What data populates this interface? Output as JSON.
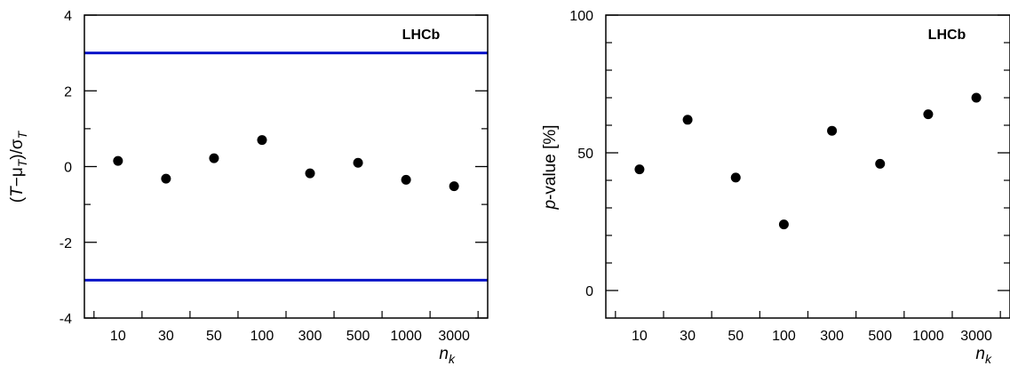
{
  "chart_data": [
    {
      "type": "scatter",
      "x": [
        "10",
        "30",
        "50",
        "100",
        "300",
        "500",
        "1000",
        "3000"
      ],
      "y": [
        0.15,
        -0.32,
        0.22,
        0.7,
        -0.18,
        0.1,
        -0.35,
        -0.52
      ],
      "ylim": [
        -4,
        4
      ],
      "yticks": [
        "-4",
        "-2",
        "0",
        "2",
        "4"
      ],
      "xlabel": "n_k",
      "ylabel": "(T−μ_T)/σ_T",
      "badge": "LHCb",
      "reference_lines": [
        3,
        -3
      ],
      "reference_color": "#0a14c8",
      "marker_color": "#000000",
      "grid": false
    },
    {
      "type": "scatter",
      "x": [
        "10",
        "30",
        "50",
        "100",
        "300",
        "500",
        "1000",
        "3000"
      ],
      "y": [
        44,
        62,
        41,
        24,
        58,
        46,
        64,
        70
      ],
      "ylim": [
        -10,
        100
      ],
      "yticks": [
        "0",
        "50",
        "100"
      ],
      "xlabel": "n_k",
      "ylabel": "p-value [%]",
      "badge": "LHCb",
      "marker_color": "#000000",
      "grid": false
    }
  ]
}
